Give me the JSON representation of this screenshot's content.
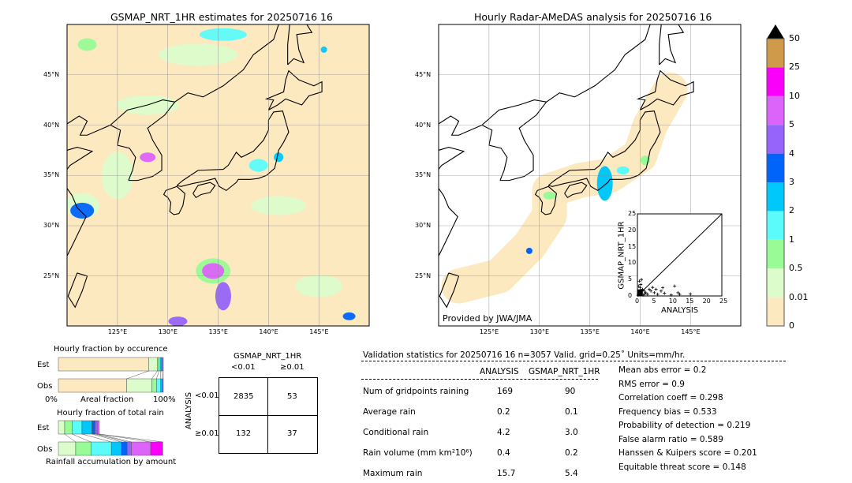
{
  "left_map": {
    "title": "GSMAP_NRT_1HR estimates for 20250716 16",
    "lon_ticks": [
      "125°E",
      "130°E",
      "135°E",
      "140°E",
      "145°E"
    ],
    "lat_ticks": [
      "45°N",
      "40°N",
      "35°N",
      "30°N",
      "25°N"
    ]
  },
  "right_map": {
    "title": "Hourly Radar-AMeDAS analysis for 20250716 16",
    "lon_ticks": [
      "125°E",
      "130°E",
      "135°E",
      "140°E",
      "145°E"
    ],
    "lat_ticks": [
      "45°N",
      "40°N",
      "35°N",
      "30°N",
      "25°N"
    ],
    "credit": "Provided by JWA/JMA"
  },
  "colorbar": {
    "labels": [
      "0",
      "0.01",
      "0.5",
      "1",
      "2",
      "3",
      "4",
      "5",
      "10",
      "25",
      "50"
    ],
    "colors": [
      "#fde9c0",
      "#dcfccc",
      "#99fb95",
      "#5bfbfb",
      "#00c8fa",
      "#0064fa",
      "#9664fa",
      "#dc64fa",
      "#fa00fa",
      "#cf9a4a"
    ]
  },
  "chart_data": {
    "type": "scatter",
    "xlabel": "ANALYSIS",
    "ylabel": "GSMAP_NRT_1HR",
    "xlim": [
      0,
      25
    ],
    "ylim": [
      0,
      25
    ],
    "xticks": [
      "0",
      "5",
      "10",
      "15",
      "20",
      "25"
    ],
    "yticks": [
      "0",
      "5",
      "10",
      "15",
      "20",
      "25"
    ],
    "points": [
      [
        0.3,
        0.5
      ],
      [
        0.5,
        1.2
      ],
      [
        0.8,
        2.5
      ],
      [
        1,
        3.5
      ],
      [
        0.6,
        4.5
      ],
      [
        1.2,
        5
      ],
      [
        0.4,
        3
      ],
      [
        1.5,
        2
      ],
      [
        2,
        1.5
      ],
      [
        2.5,
        1
      ],
      [
        3,
        0.5
      ],
      [
        1.8,
        0.3
      ],
      [
        3.5,
        2
      ],
      [
        4,
        1.5
      ],
      [
        4.5,
        2.6
      ],
      [
        5,
        1
      ],
      [
        5.5,
        2
      ],
      [
        6,
        0.5
      ],
      [
        7,
        1.5
      ],
      [
        7.5,
        2.5
      ],
      [
        8,
        0.8
      ],
      [
        10,
        0.3
      ],
      [
        11,
        3
      ],
      [
        12,
        1
      ],
      [
        12.5,
        0.5
      ],
      [
        15.7,
        0.6
      ],
      [
        0.2,
        0.2
      ],
      [
        0.7,
        0.8
      ],
      [
        1.1,
        1.6
      ],
      [
        2.2,
        0.7
      ]
    ]
  },
  "occurrence": {
    "title": "Hourly fraction by occurence",
    "rows": [
      "Est",
      "Obs"
    ],
    "xmin": "0%",
    "xmid": "Areal fraction",
    "xmax": "100%",
    "est": [
      0.86,
      0.085,
      0.015,
      0.015,
      0.01,
      0.015
    ],
    "obs": [
      0.65,
      0.24,
      0.045,
      0.04,
      0.015,
      0.01
    ]
  },
  "total_rain": {
    "title": "Hourly fraction of total rain",
    "rows": [
      "Est",
      "Obs"
    ],
    "xlabel": "Rainfall accumulation by amount",
    "est": [
      0.06,
      0.07,
      0.095,
      0.095,
      0.03,
      0.02,
      0.02
    ],
    "obs": [
      0.165,
      0.145,
      0.195,
      0.095,
      0.055,
      0.04,
      0.185,
      0.115
    ]
  },
  "contingency": {
    "title": "GSMAP_NRT_1HR",
    "col_labels": [
      "<0.01",
      "≥0.01"
    ],
    "row_title": "ANALYSIS",
    "row_labels": [
      "<0.01",
      "≥0.01"
    ],
    "cells": [
      [
        "2835",
        "53"
      ],
      [
        "132",
        "37"
      ]
    ]
  },
  "stats": {
    "header": "Validation statistics for 20250716 16  n=3057 Valid. grid=0.25˚ Units=mm/hr.",
    "col1": "ANALYSIS",
    "col2": "GSMAP_NRT_1HR",
    "rows": [
      {
        "label": "Num of gridpoints raining",
        "a": "169",
        "g": "90"
      },
      {
        "label": "Average rain",
        "a": "0.2",
        "g": "0.1"
      },
      {
        "label": "Conditional rain",
        "a": "4.2",
        "g": "3.0"
      },
      {
        "label": "Rain volume (mm km²10⁶)",
        "a": "0.4",
        "g": "0.2"
      },
      {
        "label": "Maximum rain",
        "a": "15.7",
        "g": "5.4"
      }
    ],
    "scores": [
      "Mean abs error =    0.2",
      "RMS error =    0.9",
      "Correlation coeff =  0.298",
      "Frequency bias =  0.533",
      "Probability of detection =  0.219",
      "False alarm ratio =  0.589",
      "Hanssen & Kuipers score =  0.201",
      "Equitable threat score =  0.148"
    ]
  }
}
